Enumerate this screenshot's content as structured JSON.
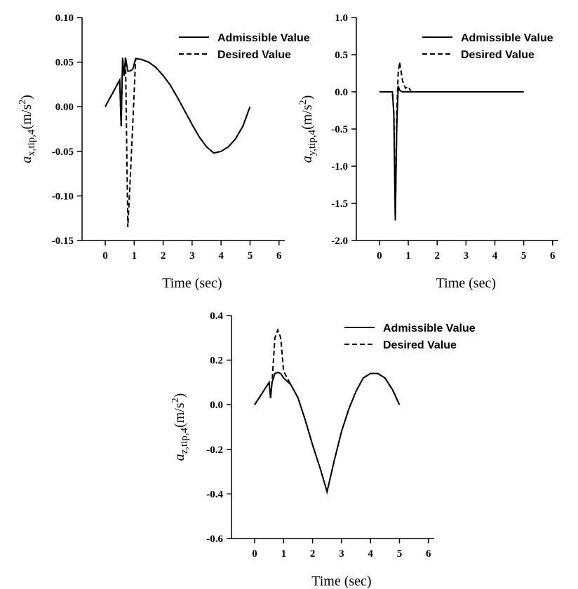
{
  "chart_data": [
    {
      "type": "line",
      "xlabel": "Time (sec)",
      "ylabel": {
        "base": "a",
        "subscript": "x,tip,4",
        "text": "(m/s",
        "superscript": "2",
        "end": ")"
      },
      "xlim": [
        -0.8,
        6.2
      ],
      "xticks": [
        0,
        1,
        2,
        3,
        4,
        5,
        6
      ],
      "ylim": [
        -0.15,
        0.1
      ],
      "yticks": [
        -0.15,
        {
          "value": -0.1,
          "label": "-0.10"
        },
        -0.05,
        {
          "value": 0,
          "label": "0.00"
        },
        0.05,
        {
          "value": 0.1,
          "label": "0.10"
        }
      ],
      "legend": "upper right",
      "x": [
        0,
        0.25,
        0.5,
        0.55,
        0.6,
        0.65,
        0.7,
        0.78,
        0.85,
        0.95,
        1.05,
        1.25,
        1.5,
        1.75,
        2,
        2.25,
        2.5,
        2.75,
        3,
        3.25,
        3.5,
        3.75,
        4,
        4.25,
        4.5,
        4.75,
        5
      ],
      "series": [
        {
          "name": "Admissible Value",
          "color": "#000000",
          "linestyle": "solid",
          "values": [
            0,
            0.015,
            0.03,
            -0.022,
            0.055,
            0.035,
            0.055,
            0.04,
            0.04,
            0.042,
            0.054,
            0.053,
            0.05,
            0.044,
            0.035,
            0.024,
            0.01,
            -0.005,
            -0.02,
            -0.034,
            -0.045,
            -0.052,
            -0.05,
            -0.045,
            -0.036,
            -0.022,
            0
          ]
        },
        {
          "name": "Desired Value",
          "color": "#000000",
          "linestyle": "dashed",
          "values": [
            0,
            0.015,
            0.03,
            -0.022,
            0.055,
            0.035,
            0.055,
            -0.135,
            -0.09,
            -0.02,
            0.054,
            0.053,
            0.05,
            0.044,
            0.035,
            0.024,
            0.01,
            -0.005,
            -0.02,
            -0.034,
            -0.045,
            -0.052,
            -0.05,
            -0.045,
            -0.036,
            -0.022,
            0
          ]
        }
      ]
    },
    {
      "type": "line",
      "xlabel": "Time (sec)",
      "ylabel": {
        "base": "a",
        "subscript": "y,tip,4",
        "text": "(m/s",
        "superscript": "2",
        "end": ")"
      },
      "xlim": [
        -0.8,
        6.2
      ],
      "xticks": [
        0,
        1,
        2,
        3,
        4,
        5,
        6
      ],
      "ylim": [
        -2,
        1
      ],
      "yticks": [
        {
          "value": -2,
          "label": "-2.0"
        },
        -1.5,
        {
          "value": -1,
          "label": "-1.0"
        },
        -0.5,
        {
          "value": 0,
          "label": "0.0"
        },
        0.5,
        {
          "value": 1,
          "label": "1.0"
        }
      ],
      "legend": "upper right",
      "x": [
        0,
        0.45,
        0.5,
        0.55,
        0.6,
        0.65,
        0.7,
        0.8,
        0.9,
        1,
        1.1,
        2,
        3,
        4,
        5
      ],
      "series": [
        {
          "name": "Admissible Value",
          "color": "#000000",
          "linestyle": "solid",
          "values": [
            0,
            0,
            -0.3,
            -1.73,
            -0.5,
            0.08,
            0.02,
            0,
            0,
            0,
            0,
            0,
            0,
            0,
            0
          ]
        },
        {
          "name": "Desired Value",
          "color": "#000000",
          "linestyle": "dashed",
          "values": [
            0,
            0,
            -0.3,
            -1.73,
            -0.3,
            0.25,
            0.4,
            0.15,
            0.05,
            0.07,
            0,
            0,
            0,
            0,
            0
          ]
        }
      ]
    },
    {
      "type": "line",
      "xlabel": "Time (sec)",
      "ylabel": {
        "base": "a",
        "subscript": "z,tip,4",
        "text": "(m/s",
        "superscript": "2",
        "end": ")"
      },
      "xlim": [
        -0.8,
        6.2
      ],
      "xticks": [
        0,
        1,
        2,
        3,
        4,
        5,
        6
      ],
      "ylim": [
        -0.6,
        0.4
      ],
      "yticks": [
        -0.6,
        -0.4,
        -0.2,
        {
          "value": 0,
          "label": "0.0"
        },
        0.2,
        0.4
      ],
      "legend": "upper right",
      "x": [
        0,
        0.25,
        0.5,
        0.55,
        0.6,
        0.7,
        0.8,
        0.9,
        1,
        1.25,
        1.5,
        1.75,
        2,
        2.25,
        2.5,
        2.75,
        3,
        3.25,
        3.5,
        3.75,
        4,
        4.25,
        4.5,
        4.75,
        5
      ],
      "series": [
        {
          "name": "Admissible Value",
          "color": "#000000",
          "linestyle": "solid",
          "values": [
            0,
            0.05,
            0.1,
            0.03,
            0.1,
            0.14,
            0.145,
            0.14,
            0.12,
            0.09,
            0.03,
            -0.07,
            -0.18,
            -0.28,
            -0.39,
            -0.25,
            -0.12,
            -0.02,
            0.06,
            0.12,
            0.14,
            0.14,
            0.12,
            0.07,
            0
          ]
        },
        {
          "name": "Desired Value",
          "color": "#000000",
          "linestyle": "dashed",
          "values": [
            0,
            0.05,
            0.1,
            0.03,
            0.1,
            0.3,
            0.335,
            0.3,
            0.15,
            0.09,
            0.03,
            -0.07,
            -0.18,
            -0.28,
            -0.39,
            -0.25,
            -0.12,
            -0.02,
            0.06,
            0.12,
            0.14,
            0.14,
            0.12,
            0.07,
            0
          ]
        }
      ]
    }
  ]
}
